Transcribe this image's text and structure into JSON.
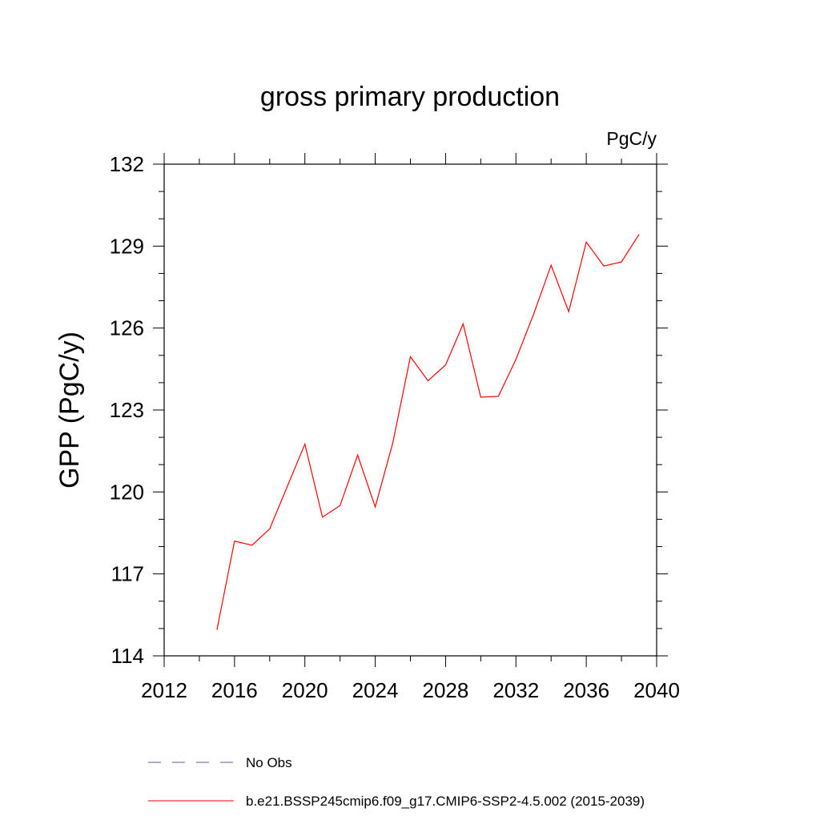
{
  "chart_data": {
    "type": "line",
    "title": "gross primary production",
    "units_label": "PgC/y",
    "ylabel": "GPP  (PgC/y)",
    "xlabel": "",
    "xlim": [
      2012,
      2040
    ],
    "ylim": [
      114,
      132
    ],
    "x_ticks": [
      2012,
      2016,
      2020,
      2024,
      2028,
      2032,
      2036,
      2040
    ],
    "y_ticks": [
      114,
      117,
      120,
      123,
      126,
      129,
      132
    ],
    "x_tick_labels": [
      "2012",
      "2016",
      "2020",
      "2024",
      "2028",
      "2032",
      "2036",
      "2040"
    ],
    "y_tick_labels": [
      "114",
      "117",
      "120",
      "123",
      "126",
      "129",
      "132"
    ],
    "grid": false,
    "legend_position": "bottom",
    "series": [
      {
        "name": "b.e21.BSSP245cmip6.f09_g17.CMIP6-SSP2-4.5.002 (2015-2039)",
        "color": "#ff0000",
        "style": "solid",
        "x": [
          2015,
          2016,
          2017,
          2018,
          2019,
          2020,
          2021,
          2022,
          2023,
          2024,
          2025,
          2026,
          2027,
          2028,
          2029,
          2030,
          2031,
          2032,
          2033,
          2034,
          2035,
          2036,
          2037,
          2038,
          2039
        ],
        "values": [
          114.95,
          118.2,
          118.05,
          118.65,
          120.2,
          121.75,
          119.08,
          119.5,
          121.35,
          119.45,
          121.8,
          124.95,
          124.07,
          124.65,
          126.15,
          123.47,
          123.5,
          124.85,
          126.5,
          128.3,
          126.6,
          129.15,
          128.27,
          128.42,
          129.43
        ]
      }
    ],
    "legend": [
      {
        "label": "No Obs",
        "color": "#5a5aa8",
        "style": "dashed"
      },
      {
        "label": "b.e21.BSSP245cmip6.f09_g17.CMIP6-SSP2-4.5.002 (2015-2039)",
        "color": "#ff0000",
        "style": "solid"
      }
    ]
  }
}
